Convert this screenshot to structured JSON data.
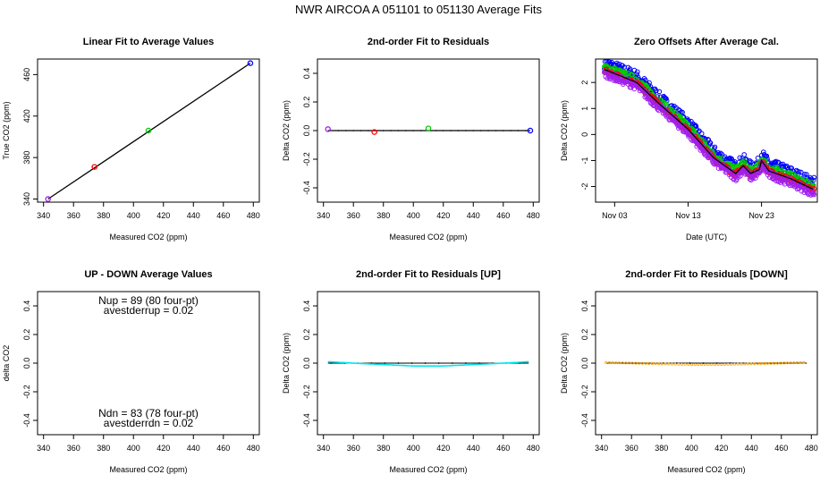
{
  "page_title": "NWR   AIRCOA A   051101 to 051130   Average Fits",
  "colors": {
    "blue": "#0000ff",
    "red": "#ff0000",
    "green": "#00cc00",
    "purple": "#a020f0",
    "cyan": "#00e5ee",
    "orange": "#ffa500",
    "black": "#000000"
  },
  "chart_data": [
    {
      "id": "p1",
      "type": "scatter",
      "title": "Linear Fit to Average Values",
      "xlabel": "Measured CO2 (ppm)",
      "ylabel": "True CO2 (ppm)",
      "xlim": [
        336,
        484
      ],
      "ylim": [
        337,
        475
      ],
      "xticks": [
        340,
        360,
        380,
        400,
        420,
        440,
        460,
        480
      ],
      "yticks": [
        340,
        380,
        420,
        460
      ],
      "points": [
        {
          "x": 343,
          "y": 340,
          "color": "purple"
        },
        {
          "x": 374,
          "y": 371,
          "color": "red"
        },
        {
          "x": 410,
          "y": 406,
          "color": "green"
        },
        {
          "x": 478,
          "y": 471,
          "color": "blue"
        }
      ],
      "fit_line": [
        [
          343,
          340
        ],
        [
          478,
          471
        ]
      ]
    },
    {
      "id": "p2",
      "type": "scatter",
      "title": "2nd-order Fit to Residuals",
      "xlabel": "Measured CO2 (ppm)",
      "ylabel": "Delta CO2 (ppm)",
      "xlim": [
        336,
        484
      ],
      "ylim": [
        -0.5,
        0.5
      ],
      "xticks": [
        340,
        360,
        380,
        400,
        420,
        440,
        460,
        480
      ],
      "yticks": [
        -0.4,
        -0.2,
        0.0,
        0.2,
        0.4
      ],
      "points": [
        {
          "x": 343,
          "y": 0.01,
          "color": "purple"
        },
        {
          "x": 374,
          "y": -0.01,
          "color": "red"
        },
        {
          "x": 410,
          "y": 0.015,
          "color": "green"
        },
        {
          "x": 478,
          "y": 0.0,
          "color": "blue"
        }
      ],
      "fit_line": [
        [
          343,
          0.0
        ],
        [
          478,
          0.0
        ]
      ]
    },
    {
      "id": "p3",
      "type": "scatter",
      "title": "Zero Offsets After Average Cal.",
      "xlabel": "Date (UTC)",
      "ylabel": "Delta CO2 (ppm)",
      "xlim": [
        0.4,
        30.6
      ],
      "ylim": [
        -2.6,
        2.9
      ],
      "xticks": [
        3,
        13,
        23
      ],
      "xtick_labels": [
        "Nov 03",
        "Nov 13",
        "Nov 23"
      ],
      "yticks": [
        -2,
        -1,
        0,
        1,
        2
      ],
      "series": [
        {
          "name": "blue",
          "color": "blue",
          "offset": 0.25,
          "noise": 0.22
        },
        {
          "name": "green",
          "color": "green",
          "offset": 0.1,
          "noise": 0.14
        },
        {
          "name": "red",
          "color": "red",
          "offset": -0.05,
          "noise": 0.1
        },
        {
          "name": "purple",
          "color": "purple",
          "offset": -0.15,
          "noise": 0.14
        }
      ],
      "trend": [
        [
          1.6,
          2.5
        ],
        [
          6,
          2.0
        ],
        [
          9,
          1.2
        ],
        [
          13,
          0.2
        ],
        [
          16.5,
          -0.9
        ],
        [
          19.5,
          -1.5
        ],
        [
          20.5,
          -1.2
        ],
        [
          21.5,
          -1.5
        ],
        [
          22.7,
          -1.35
        ],
        [
          23,
          -1.0
        ],
        [
          24,
          -1.4
        ],
        [
          27,
          -1.7
        ],
        [
          30,
          -2.1
        ]
      ]
    },
    {
      "id": "p4",
      "type": "scatter",
      "title": "UP - DOWN Average Values",
      "xlabel": "Measured CO2 (ppm)",
      "ylabel": "delta CO2",
      "xlim": [
        336,
        484
      ],
      "ylim": [
        -0.5,
        0.5
      ],
      "xticks": [
        340,
        360,
        380,
        400,
        420,
        440,
        460,
        480
      ],
      "yticks": [
        -0.4,
        -0.2,
        0.0,
        0.2,
        0.4
      ],
      "annotations": [
        "Nup = 89 (80 four-pt)",
        "avestderrup =  0.02",
        "Ndn = 83 (78 four-pt)",
        "avestderrdn =  0.02"
      ]
    },
    {
      "id": "p5",
      "type": "line",
      "title": "2nd-order Fit to Residuals [UP]",
      "xlabel": "Measured CO2 (ppm)",
      "ylabel": "Delta CO2 (ppm)",
      "xlim": [
        336,
        484
      ],
      "ylim": [
        -0.5,
        0.5
      ],
      "xticks": [
        340,
        360,
        380,
        400,
        420,
        440,
        460,
        480
      ],
      "yticks": [
        -0.4,
        -0.2,
        0.0,
        0.2,
        0.4
      ],
      "color": "cyan",
      "residual_curve": [
        [
          343,
          0.01
        ],
        [
          360,
          0.0
        ],
        [
          380,
          -0.01
        ],
        [
          400,
          -0.02
        ],
        [
          420,
          -0.02
        ],
        [
          440,
          -0.01
        ],
        [
          460,
          0.0
        ],
        [
          477,
          0.01
        ]
      ]
    },
    {
      "id": "p6",
      "type": "line",
      "title": "2nd-order Fit to Residuals [DOWN]",
      "xlabel": "Measured CO2 (ppm)",
      "ylabel": "Delta CO2 (ppm)",
      "xlim": [
        336,
        484
      ],
      "ylim": [
        -0.5,
        0.5
      ],
      "xticks": [
        340,
        360,
        380,
        400,
        420,
        440,
        460,
        480
      ],
      "yticks": [
        -0.4,
        -0.2,
        0.0,
        0.2,
        0.4
      ],
      "color": "orange",
      "residual_curve": [
        [
          343,
          0.005
        ],
        [
          360,
          0.0
        ],
        [
          380,
          -0.005
        ],
        [
          400,
          -0.01
        ],
        [
          420,
          -0.01
        ],
        [
          440,
          -0.005
        ],
        [
          460,
          0.0
        ],
        [
          477,
          0.005
        ]
      ]
    }
  ]
}
